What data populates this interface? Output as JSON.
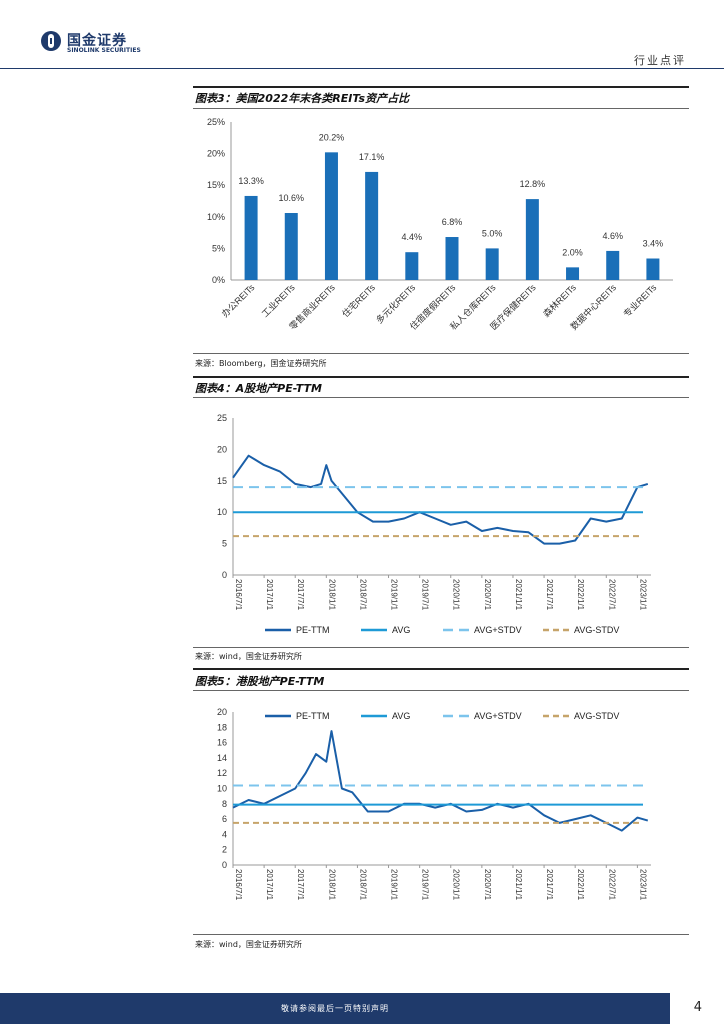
{
  "header": {
    "logo_cn": "国金证券",
    "logo_en": "SINOLINK SECURITIES",
    "doc_type": "行业点评"
  },
  "figures": [
    {
      "title": "图表3：美国2022年末各类REITs资产占比",
      "source": "来源：Bloomberg，国金证券研究所"
    },
    {
      "title": "图表4：A股地产PE-TTM",
      "source": "来源：wind，国金证券研究所"
    },
    {
      "title": "图表5：港股地产PE-TTM",
      "source": "来源：wind，国金证券研究所"
    }
  ],
  "footer": {
    "disclaimer": "敬请参阅最后一页特别声明",
    "page": "4"
  },
  "colors": {
    "brand": "#1f3a6b",
    "bar": "#1a6fb8",
    "pe": "#1a5fa8",
    "avg": "#1e9ad6",
    "avg_plus": "#7cc4ec",
    "avg_minus": "#c6a46a"
  },
  "chart_data": [
    {
      "type": "bar",
      "categories": [
        "办公REITs",
        "工业REITs",
        "零售商业REITs",
        "住宅REITs",
        "多元化REITs",
        "住宿度假REITs",
        "私人仓库REITs",
        "医疗保健REITs",
        "森林REITs",
        "数据中心REITs",
        "专业REITs"
      ],
      "values": [
        13.3,
        10.6,
        20.2,
        17.1,
        4.4,
        6.8,
        5.0,
        12.8,
        2.0,
        4.6,
        3.4
      ],
      "value_labels": [
        "13.3%",
        "10.6%",
        "20.2%",
        "17.1%",
        "4.4%",
        "6.8%",
        "5.0%",
        "12.8%",
        "2.0%",
        "4.6%",
        "3.4%"
      ],
      "ylim": [
        0,
        25
      ],
      "yticks": [
        "0%",
        "5%",
        "10%",
        "15%",
        "20%",
        "25%"
      ],
      "grid": false
    },
    {
      "type": "line",
      "x_ticks": [
        "2016/7/1",
        "2017/1/1",
        "2017/7/1",
        "2018/1/1",
        "2018/7/1",
        "2019/1/1",
        "2019/7/1",
        "2020/1/1",
        "2020/7/1",
        "2021/1/1",
        "2021/7/1",
        "2022/1/1",
        "2022/7/1",
        "2023/1/1"
      ],
      "ylim": [
        0,
        25
      ],
      "yticks": [
        "0",
        "5",
        "10",
        "15",
        "20",
        "25"
      ],
      "legend_position": "bottom",
      "series": [
        {
          "name": "PE-TTM",
          "style": "solid",
          "x": [
            "2016/7/1",
            "2016/10/1",
            "2017/1/1",
            "2017/4/1",
            "2017/7/1",
            "2017/10/1",
            "2017/12/1",
            "2018/1/1",
            "2018/2/1",
            "2018/4/1",
            "2018/7/1",
            "2018/10/1",
            "2019/1/1",
            "2019/4/1",
            "2019/7/1",
            "2019/10/1",
            "2020/1/1",
            "2020/4/1",
            "2020/7/1",
            "2020/10/1",
            "2021/1/1",
            "2021/4/1",
            "2021/7/1",
            "2021/10/1",
            "2022/1/1",
            "2022/4/1",
            "2022/7/1",
            "2022/10/1",
            "2023/1/1",
            "2023/3/1"
          ],
          "values": [
            15.5,
            19,
            17.5,
            16.5,
            14.5,
            14,
            14.5,
            17.5,
            15,
            13,
            10,
            8.5,
            8.5,
            9,
            10,
            9,
            8,
            8.5,
            7,
            7.5,
            7,
            6.8,
            5,
            5,
            5.5,
            9,
            8.5,
            9,
            14,
            14.5
          ]
        },
        {
          "name": "AVG",
          "style": "solid",
          "values": [
            10
          ]
        },
        {
          "name": "AVG+STDV",
          "style": "dashed",
          "values": [
            14
          ]
        },
        {
          "name": "AVG-STDV",
          "style": "dashed",
          "values": [
            6.2
          ]
        }
      ]
    },
    {
      "type": "line",
      "x_ticks": [
        "2016/7/1",
        "2017/1/1",
        "2017/7/1",
        "2018/1/1",
        "2018/7/1",
        "2019/1/1",
        "2019/7/1",
        "2020/1/1",
        "2020/7/1",
        "2021/1/1",
        "2021/7/1",
        "2022/1/1",
        "2022/7/1",
        "2023/1/1"
      ],
      "ylim": [
        0,
        20
      ],
      "yticks": [
        "0",
        "2",
        "4",
        "6",
        "8",
        "10",
        "12",
        "14",
        "16",
        "18",
        "20"
      ],
      "legend_position": "top",
      "series": [
        {
          "name": "PE-TTM",
          "style": "solid",
          "x": [
            "2016/7/1",
            "2016/10/1",
            "2017/1/1",
            "2017/4/1",
            "2017/7/1",
            "2017/9/1",
            "2017/11/1",
            "2018/1/1",
            "2018/2/1",
            "2018/4/1",
            "2018/6/1",
            "2018/9/1",
            "2019/1/1",
            "2019/4/1",
            "2019/7/1",
            "2019/10/1",
            "2020/1/1",
            "2020/4/1",
            "2020/7/1",
            "2020/10/1",
            "2021/1/1",
            "2021/4/1",
            "2021/7/1",
            "2021/10/1",
            "2022/1/1",
            "2022/4/1",
            "2022/7/1",
            "2022/10/1",
            "2023/1/1",
            "2023/3/1"
          ],
          "values": [
            7.5,
            8.5,
            8,
            9,
            10,
            12,
            14.5,
            13.5,
            17.5,
            10,
            9.5,
            7,
            7,
            8,
            8,
            7.5,
            8,
            7,
            7.2,
            8,
            7.5,
            8,
            6.5,
            5.5,
            6,
            6.5,
            5.5,
            4.5,
            6.2,
            5.8
          ]
        },
        {
          "name": "AVG",
          "style": "solid",
          "values": [
            7.9
          ]
        },
        {
          "name": "AVG+STDV",
          "style": "dashed",
          "values": [
            10.4
          ]
        },
        {
          "name": "AVG-STDV",
          "style": "dashed",
          "values": [
            5.5
          ]
        }
      ]
    }
  ]
}
